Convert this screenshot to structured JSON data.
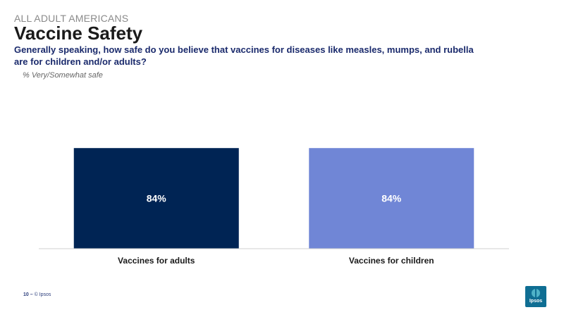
{
  "header": {
    "kicker": "ALL ADULT AMERICANS",
    "title": "Vaccine Safety",
    "question": "Generally speaking, how safe do you believe that vaccines for diseases like measles, mumps, and rubella are for children and/or adults?",
    "base_note": "% Very/Somewhat safe"
  },
  "footer": {
    "page": "10 –",
    "copyright": "© Ipsos"
  },
  "logo": {
    "text": "Ipsos"
  },
  "colors": {
    "adults_bar": "#002454",
    "children_bar": "#7086d6",
    "question_text": "#1a2a6c"
  },
  "chart_data": {
    "type": "bar",
    "categories": [
      "Vaccines for adults",
      "Vaccines for children"
    ],
    "values": [
      84,
      84
    ],
    "value_labels": [
      "84%",
      "84%"
    ],
    "colors": [
      "#002454",
      "#7086d6"
    ],
    "title": "",
    "xlabel": "",
    "ylabel": "",
    "ylim": [
      0,
      100
    ],
    "grid": false,
    "legend": "none"
  }
}
